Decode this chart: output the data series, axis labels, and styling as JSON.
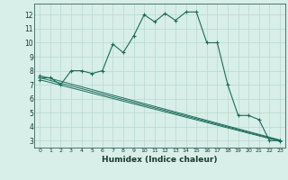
{
  "xlabel": "Humidex (Indice chaleur)",
  "ylabel": "",
  "background_color": "#d8eee8",
  "grid_color": "#b8d8cc",
  "line_color": "#1a6b5a",
  "xlim": [
    -0.5,
    23.5
  ],
  "ylim": [
    2.5,
    12.8
  ],
  "yticks": [
    3,
    4,
    5,
    6,
    7,
    8,
    9,
    10,
    11,
    12
  ],
  "xticks": [
    0,
    1,
    2,
    3,
    4,
    5,
    6,
    7,
    8,
    9,
    10,
    11,
    12,
    13,
    14,
    15,
    16,
    17,
    18,
    19,
    20,
    21,
    22,
    23
  ],
  "series": [
    [
      0,
      7.5
    ],
    [
      1,
      7.5
    ],
    [
      2,
      7.0
    ],
    [
      3,
      8.0
    ],
    [
      4,
      8.0
    ],
    [
      5,
      7.8
    ],
    [
      6,
      8.0
    ],
    [
      7,
      9.9
    ],
    [
      8,
      9.3
    ],
    [
      9,
      10.5
    ],
    [
      10,
      12.0
    ],
    [
      11,
      11.5
    ],
    [
      12,
      12.1
    ],
    [
      13,
      11.6
    ],
    [
      14,
      12.2
    ],
    [
      15,
      12.2
    ],
    [
      16,
      10.0
    ],
    [
      17,
      10.0
    ],
    [
      18,
      7.0
    ],
    [
      19,
      4.8
    ],
    [
      20,
      4.8
    ],
    [
      21,
      4.5
    ],
    [
      22,
      3.0
    ],
    [
      23,
      3.0
    ]
  ],
  "line2": [
    [
      0,
      7.5
    ],
    [
      23,
      3.0
    ]
  ],
  "line3": [
    [
      0,
      7.5
    ],
    [
      23,
      3.0
    ]
  ],
  "line4": [
    [
      0,
      7.5
    ],
    [
      23,
      3.0
    ]
  ]
}
